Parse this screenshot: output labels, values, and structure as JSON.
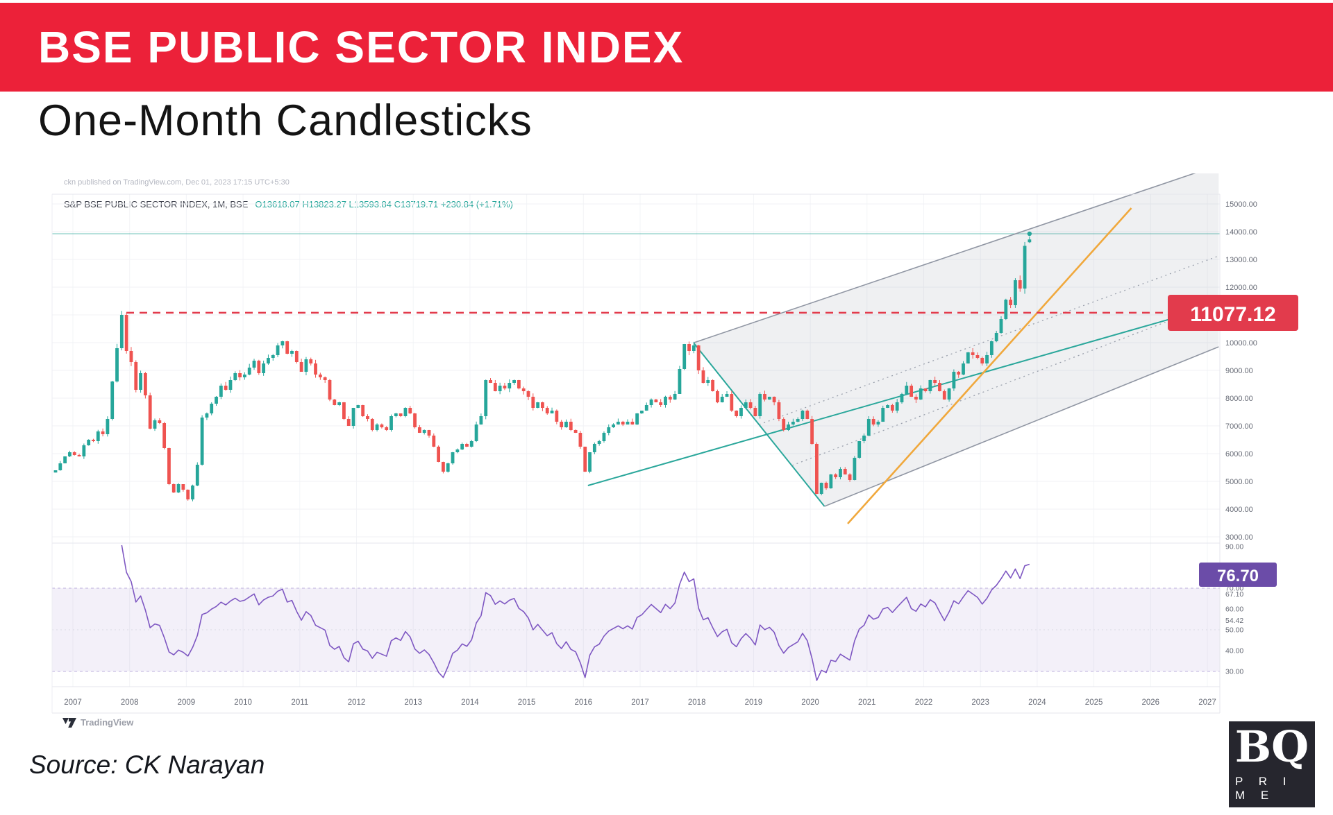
{
  "header": {
    "banner_title": "BSE PUBLIC SECTOR INDEX",
    "subtitle": "One-Month Candlesticks",
    "banner_color": "#EC2139"
  },
  "chart": {
    "publish_line": "ckn published on TradingView.com, Dec 01, 2023 17:15 UTC+5:30",
    "legend_symbol": "S&P BSE PUBLIC SECTOR INDEX, 1M, BSE",
    "legend_values": "O13618.07  H13823.27  L13593.84  C13719.71  +230.84 (+1.71%)",
    "price_label_text": "11077.12",
    "rsi_label_text": "76.70",
    "price_label_color": "#e23b4c",
    "rsi_label_color": "#6b4ca8"
  },
  "chart_data": {
    "type": "candlestick",
    "title": "S&P BSE PUBLIC SECTOR INDEX, 1M, BSE",
    "timeframe": "1M",
    "x_start": "2006-10",
    "monthly_closes": [
      5400,
      5650,
      5900,
      6050,
      5950,
      5900,
      6300,
      6500,
      6450,
      6800,
      6700,
      7250,
      8600,
      9800,
      11000,
      9700,
      9300,
      8300,
      8900,
      8100,
      6900,
      7200,
      7100,
      6200,
      4900,
      4600,
      4900,
      4700,
      4350,
      4850,
      5600,
      7300,
      7450,
      7800,
      8050,
      8450,
      8300,
      8650,
      8900,
      8750,
      8850,
      9100,
      9350,
      8900,
      9250,
      9450,
      9550,
      9900,
      10050,
      9600,
      9700,
      9300,
      8950,
      9400,
      9250,
      8850,
      8750,
      8650,
      7950,
      7750,
      7850,
      7250,
      7000,
      7650,
      7750,
      7350,
      7250,
      6850,
      7050,
      6950,
      6850,
      7350,
      7450,
      7350,
      7650,
      7450,
      6950,
      6750,
      6850,
      6650,
      6250,
      5700,
      5350,
      5650,
      6050,
      6150,
      6350,
      6250,
      6450,
      7050,
      7350,
      8650,
      8550,
      8250,
      8450,
      8350,
      8550,
      8650,
      8350,
      8250,
      8050,
      7650,
      7850,
      7650,
      7450,
      7550,
      7150,
      6950,
      7150,
      6850,
      6750,
      6250,
      5350,
      6050,
      6350,
      6450,
      6750,
      6950,
      7050,
      7150,
      7050,
      7150,
      7050,
      7450,
      7550,
      7750,
      7950,
      7850,
      7750,
      8050,
      7950,
      8150,
      9050,
      9950,
      9700,
      9900,
      9000,
      8550,
      8650,
      8250,
      7850,
      8050,
      8150,
      7550,
      7350,
      7650,
      7850,
      7650,
      7350,
      8150,
      7950,
      8050,
      7850,
      7250,
      6850,
      7050,
      7150,
      7250,
      7550,
      7250,
      6350,
      4550,
      4950,
      4750,
      5250,
      5150,
      5450,
      5250,
      5050,
      5850,
      6450,
      6650,
      7250,
      7050,
      7150,
      7650,
      7750,
      7550,
      7850,
      8150,
      8450,
      8050,
      7950,
      8350,
      8250,
      8650,
      8550,
      8250,
      7950,
      8350,
      8950,
      8850,
      9250,
      9650,
      9550,
      9450,
      9250,
      9550,
      10050,
      10350,
      10850,
      11550,
      11350,
      12250,
      11950,
      13488.87,
      13719.71
    ],
    "bar_overrides": {
      "15": {
        "high": 11077.12
      },
      "206": {
        "open": 13618.07,
        "high": 13823.27,
        "low": 13593.84,
        "close": 13719.71
      }
    },
    "last_bar": {
      "open": 13618.07,
      "high": 13823.27,
      "low": 13593.84,
      "close": 13719.71,
      "change": 230.84,
      "change_pct": 1.71
    },
    "price_axis_ticks": [
      15000,
      14000,
      13000,
      12000,
      10000,
      9000,
      8000,
      7000,
      6000,
      5000,
      4000,
      3000
    ],
    "time_axis_years": [
      2007,
      2008,
      2009,
      2010,
      2011,
      2012,
      2013,
      2014,
      2015,
      2016,
      2017,
      2018,
      2019,
      2020,
      2021,
      2022,
      2023,
      2024,
      2025,
      2026,
      2027
    ],
    "levels": {
      "resistance": 11077.12,
      "ath_line": 13925
    },
    "trendlines": [
      {
        "name": "support-trendline-teal",
        "color": "teal",
        "from": {
          "x": 2016.08,
          "price": 4850
        },
        "to": {
          "x": 2027.2,
          "price": 11350
        }
      },
      {
        "name": "channel-left-teal",
        "color": "teal",
        "from": {
          "x": 2017.95,
          "price": 9975
        },
        "to": {
          "x": 2020.25,
          "price": 4100
        }
      },
      {
        "name": "channel-upper",
        "color": "gray",
        "from": {
          "x": 2017.95,
          "price": 10000
        },
        "to": {
          "x": 2027.2,
          "price": 16400
        }
      },
      {
        "name": "channel-lower",
        "color": "gray",
        "from": {
          "x": 2020.25,
          "price": 4100
        },
        "to": {
          "x": 2027.2,
          "price": 9850
        }
      },
      {
        "name": "channel-mid-dotted",
        "color": "gray-dotted",
        "from": {
          "x": 2019.1,
          "price": 7050
        },
        "to": {
          "x": 2027.2,
          "price": 13125
        }
      },
      {
        "name": "channel-lower-mid-dotted",
        "color": "gray-dotted",
        "from": {
          "x": 2019.68,
          "price": 5575
        },
        "to": {
          "x": 2027.2,
          "price": 11475
        }
      },
      {
        "name": "orange-trendline",
        "color": "orange",
        "from": {
          "x": 2020.66,
          "price": 3475
        },
        "to": {
          "x": 2025.66,
          "price": 14850
        }
      }
    ],
    "rsi": {
      "period": 14,
      "current": 76.7,
      "band": [
        30,
        70
      ],
      "axis_ticks": [
        90,
        70,
        67.1,
        60,
        54.42,
        50,
        40,
        30
      ]
    },
    "colors": {
      "up": "#26a69a",
      "down": "#ef5350",
      "rsi_line": "#7e57c2",
      "orange": "#f0a83c",
      "teal_line": "#2aa79b",
      "channel_gray": "#9096a3",
      "red_dashed": "#e23b4c"
    }
  },
  "attribution": {
    "tradingview": "TradingView"
  },
  "footer": {
    "source": "Source: CK Narayan"
  },
  "logo": {
    "bq": "BQ",
    "prime": "P R I M E"
  }
}
